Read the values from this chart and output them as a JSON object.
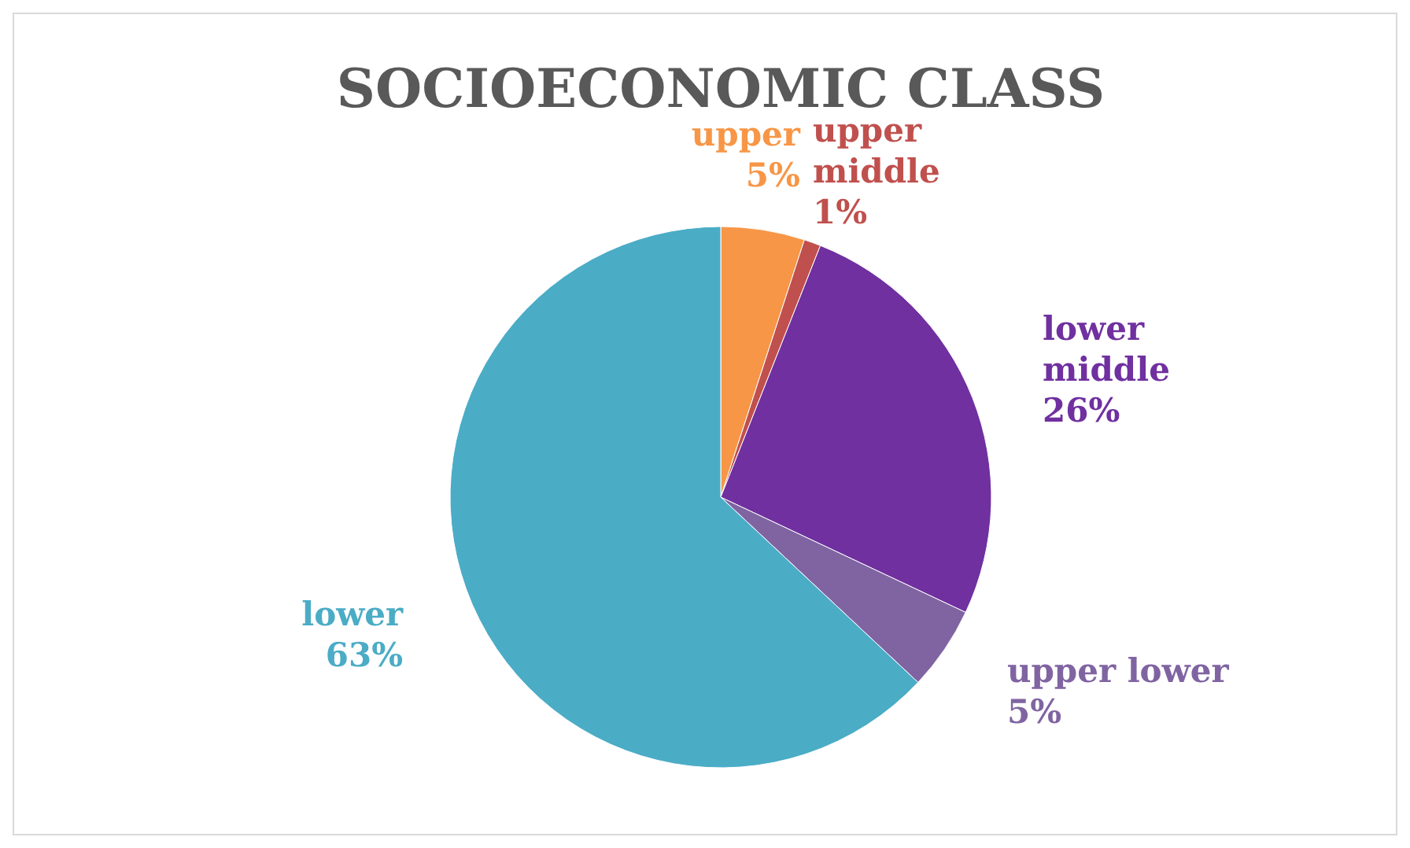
{
  "chart_data": {
    "type": "pie",
    "title": "SOCIOECONOMIC CLASS",
    "categories": [
      "upper",
      "upper middle",
      "lower middle",
      "upper lower",
      "lower"
    ],
    "values": [
      5,
      1,
      26,
      5,
      63
    ],
    "colors": [
      "#f79646",
      "#c0504d",
      "#7030a0",
      "#8064a2",
      "#4bacc6"
    ],
    "value_labels": [
      "5%",
      "1%",
      "26%",
      "5%",
      "63%"
    ]
  }
}
